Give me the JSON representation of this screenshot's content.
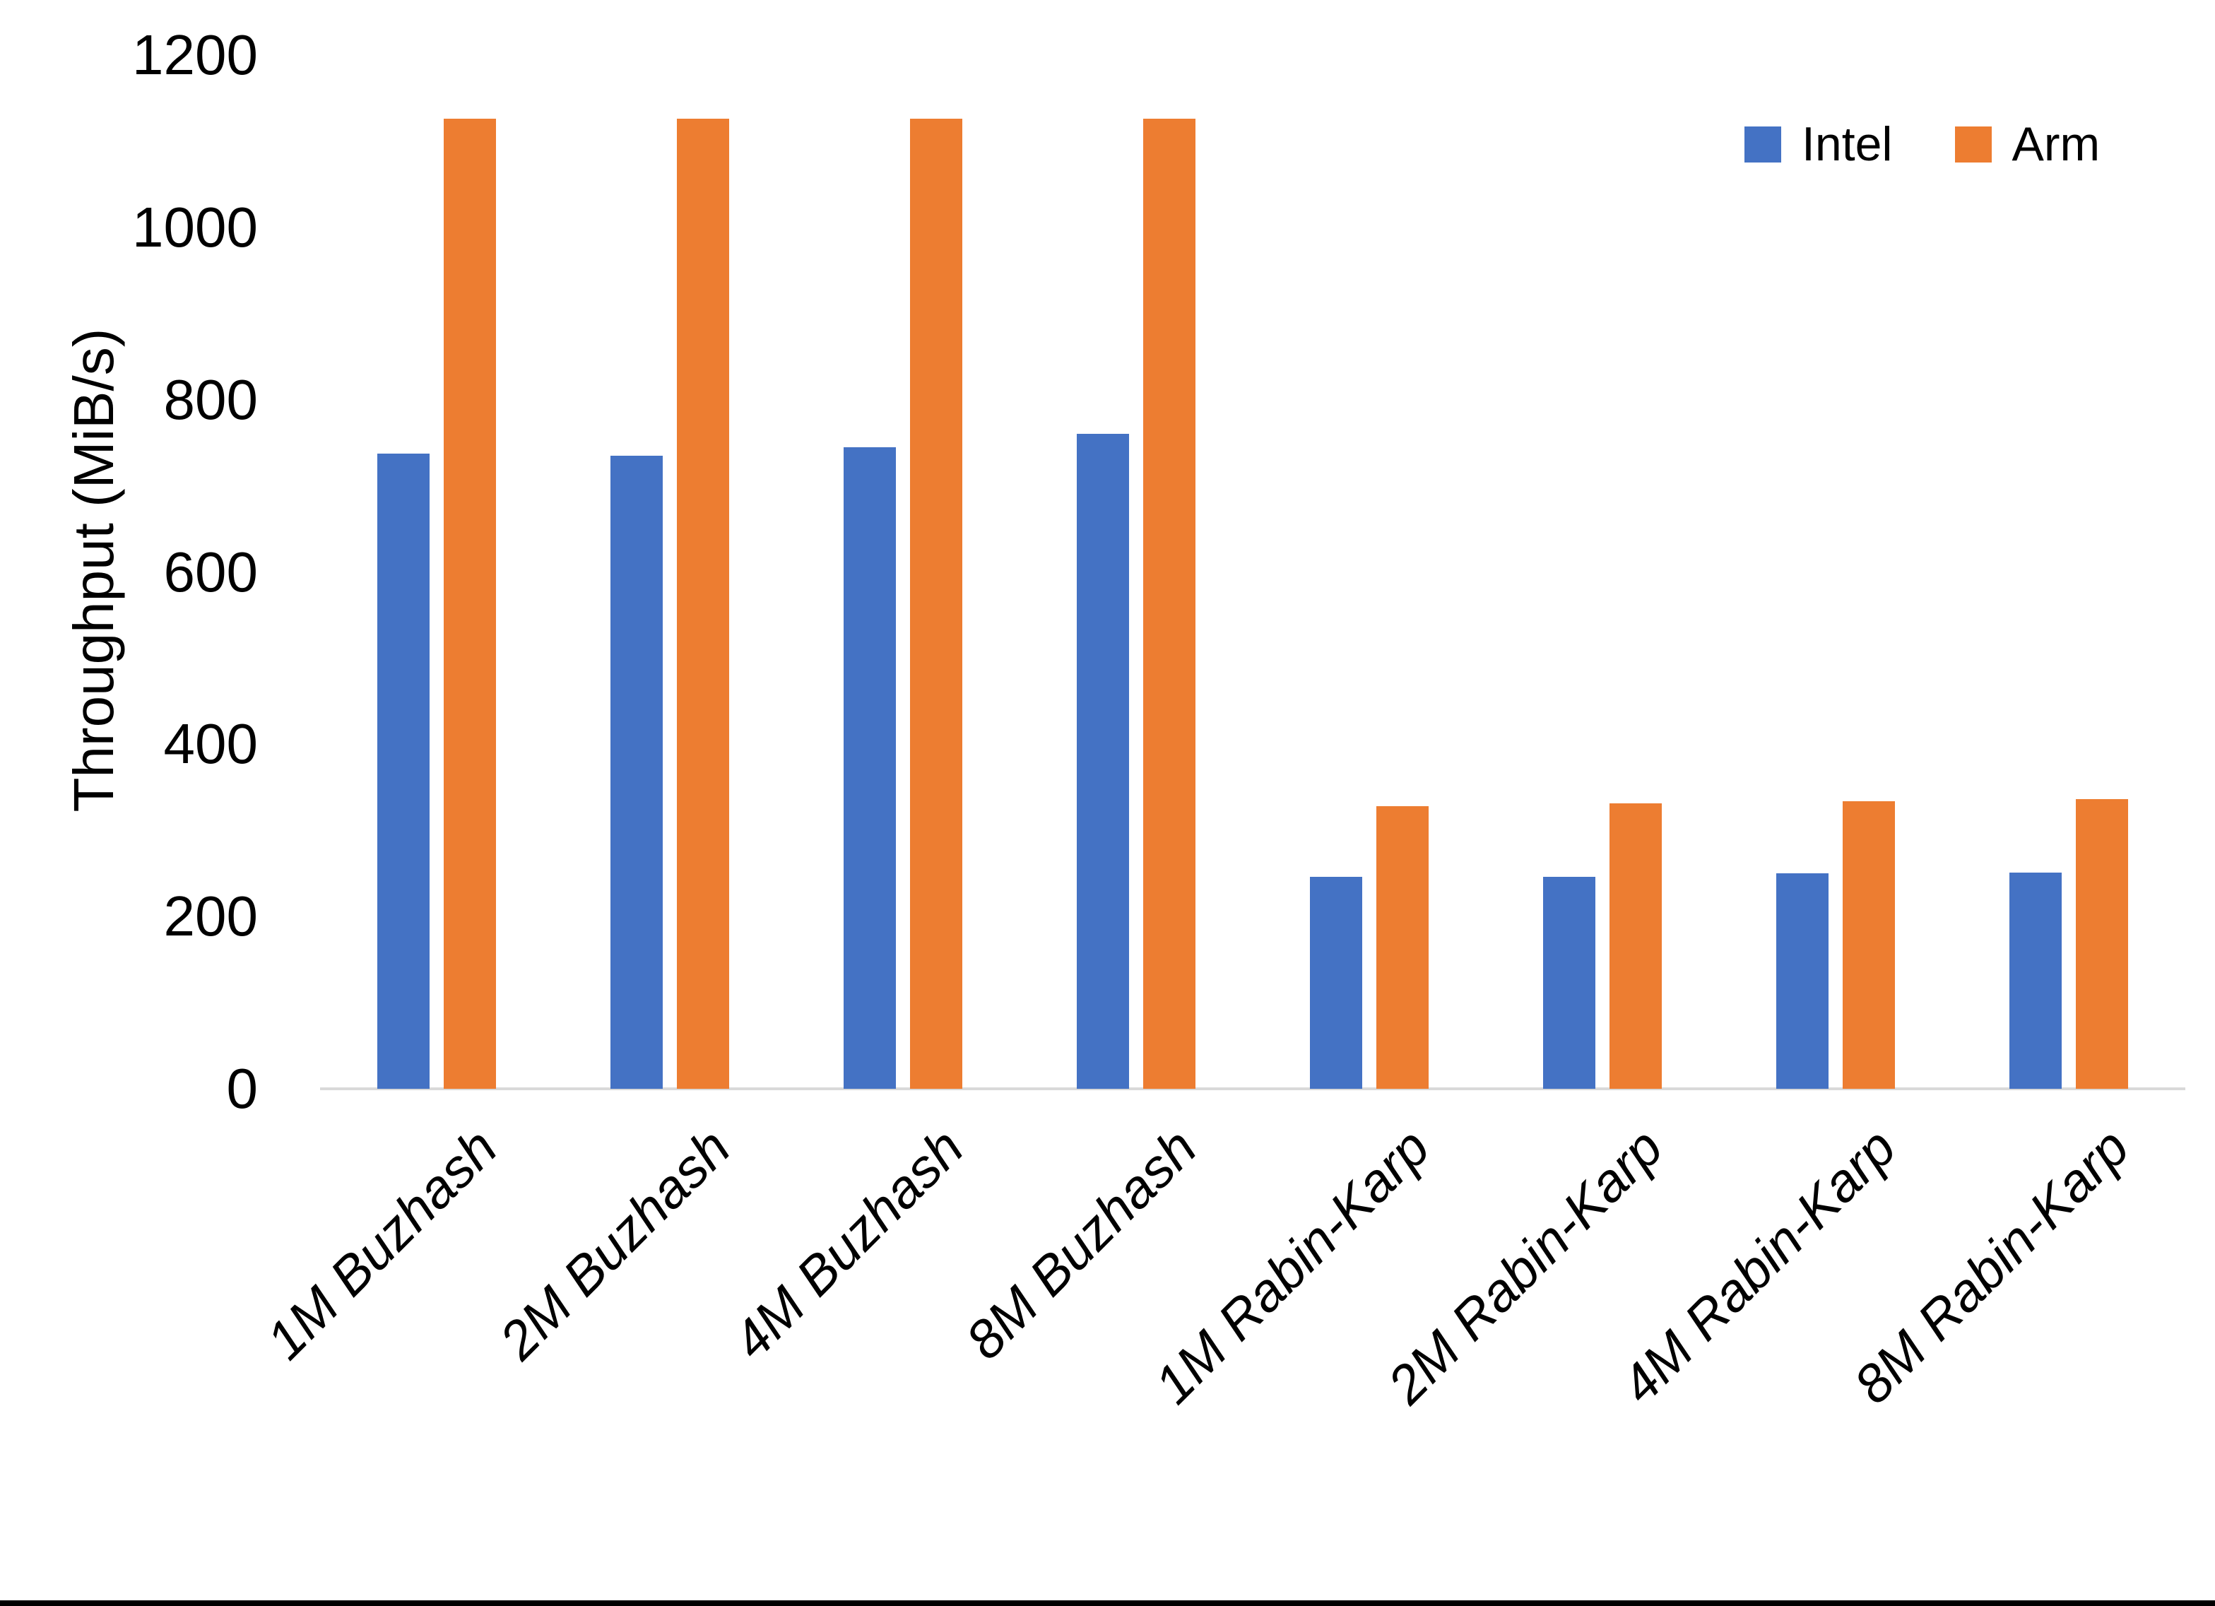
{
  "chart_data": {
    "type": "bar",
    "title": "",
    "xlabel": "",
    "ylabel": "Throughput (MiB/s)",
    "categories": [
      "1M Buzhash",
      "2M Buzhash",
      "4M Buzhash",
      "8M Buzhash",
      "1M Rabin-Karp",
      "2M Rabin-Karp",
      "4M Rabin-Karp",
      "8M Rabin-Karp"
    ],
    "series": [
      {
        "name": "Intel",
        "color": "#4472C4",
        "values": [
          737,
          735,
          745,
          760,
          246,
          246,
          250,
          251
        ]
      },
      {
        "name": "Arm",
        "color": "#ED7D31",
        "values": [
          1126,
          1126,
          1126,
          1126,
          328,
          331,
          334,
          336
        ]
      }
    ],
    "y_axis": {
      "min": 0,
      "max": 1200,
      "tick_step": 200,
      "ticks": [
        0,
        200,
        400,
        600,
        800,
        1000,
        1200
      ]
    },
    "legend_position": "top-right",
    "grid": false,
    "axis_line_color": "#d9d9d9",
    "text_color": "#000000",
    "background_color": "#ffffff"
  }
}
